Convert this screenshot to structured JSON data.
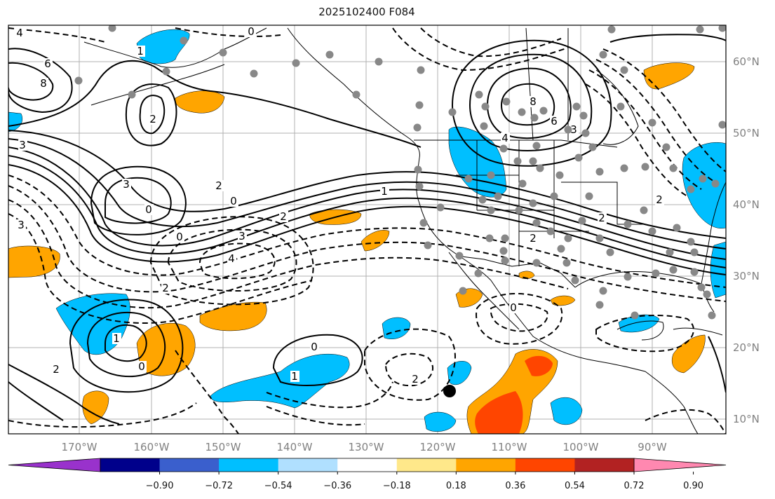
{
  "title": "2025102400 F084",
  "map": {
    "projection": "PlateCarree",
    "lon_ticks": [
      "170°W",
      "160°W",
      "150°W",
      "140°W",
      "130°W",
      "120°W",
      "110°W",
      "100°W",
      "90°W"
    ],
    "lat_ticks": [
      "60°N",
      "50°N",
      "40°N",
      "30°N",
      "20°N",
      "10°N"
    ],
    "contour_labels": [
      "4",
      "6",
      "8",
      "0",
      "3",
      "3",
      "2",
      "1",
      "0",
      "2",
      "0",
      "3",
      "4",
      "2",
      "1",
      "2",
      "0",
      "1",
      "0",
      "0",
      "1",
      "2",
      "0",
      "8",
      "6",
      "4",
      "3",
      "2",
      "2",
      "2",
      "3",
      "2"
    ],
    "colors": {
      "neg_light": "#b0e0ff",
      "neg": "#00bfff",
      "pos_light": "#ffe88a",
      "pos": "#ffa500",
      "pos_strong": "#ff4500",
      "point": "#888888",
      "marker": "#000000"
    }
  },
  "colorbar": {
    "colors": [
      "#9932cc",
      "#00008b",
      "#3a5fcd",
      "#00bfff",
      "#b0e0ff",
      "#ffffff",
      "#ffe88a",
      "#ffa500",
      "#ff4500",
      "#b22222",
      "#ff88b0"
    ],
    "labels": [
      "−0.90",
      "−0.72",
      "−0.54",
      "−0.36",
      "−0.18",
      "0.18",
      "0.36",
      "0.54",
      "0.72",
      "0.90"
    ]
  }
}
